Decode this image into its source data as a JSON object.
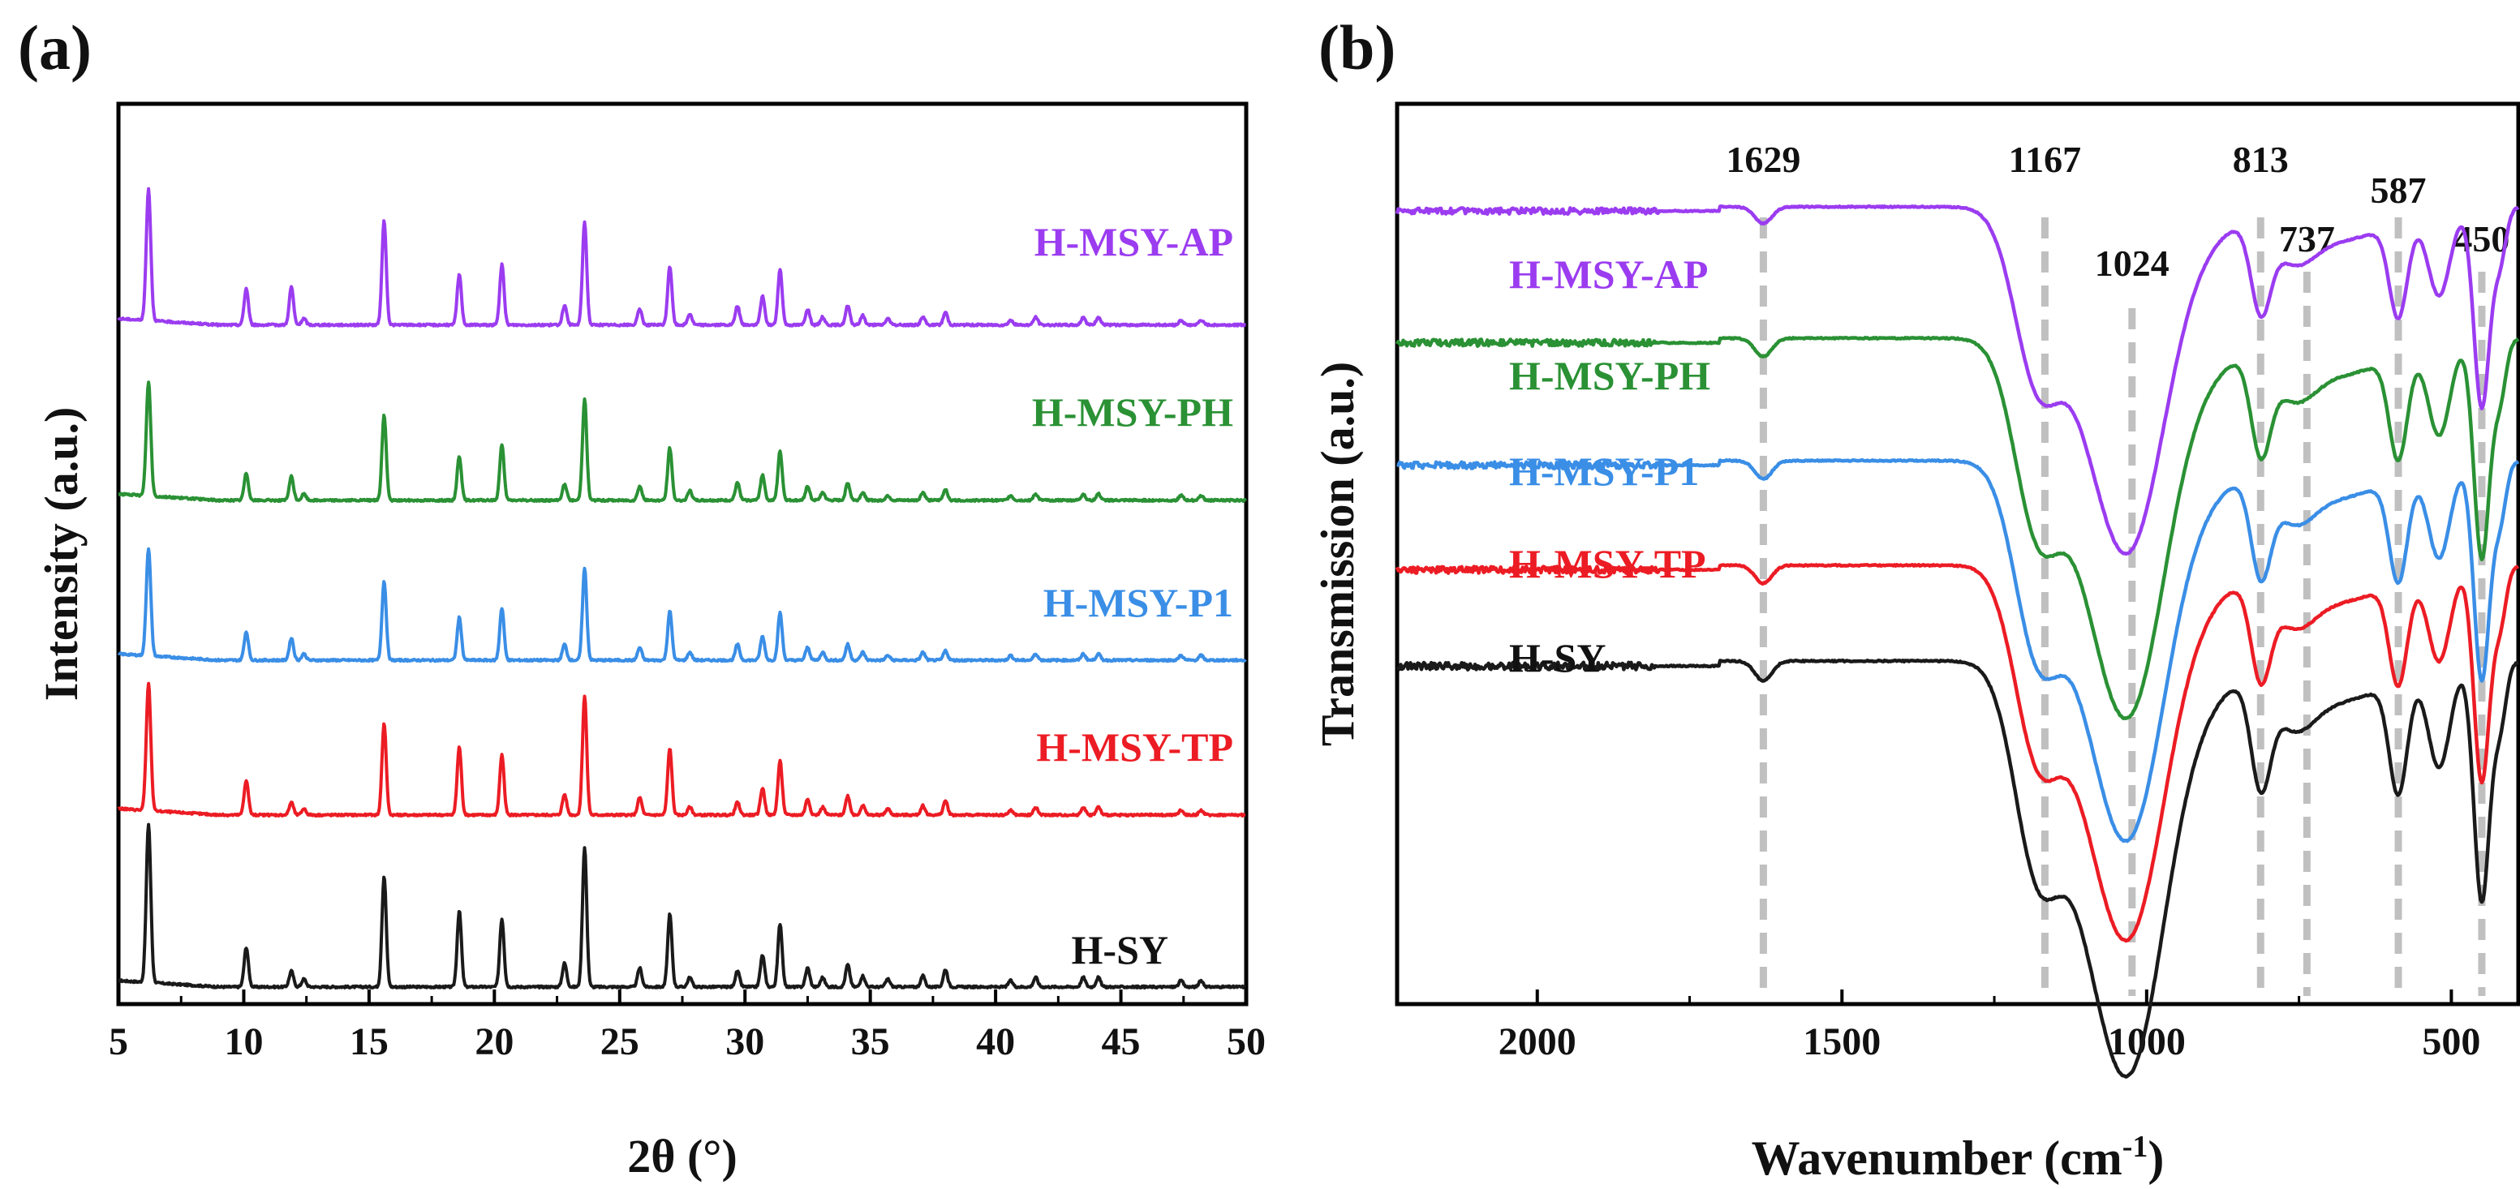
{
  "colors": {
    "black": "#1a1a1a",
    "red": "#ec1c24",
    "blue": "#3a8ee6",
    "green": "#2a9134",
    "purple": "#9b3cf0",
    "dashed": "#c0c0c0"
  },
  "chart_data": [
    {
      "panel": "(a)",
      "type": "line",
      "title": "",
      "xlabel": "2θ (°)",
      "ylabel": "Intensity (a.u.)",
      "xlim": [
        5,
        50
      ],
      "xticks": [
        "5",
        "10",
        "15",
        "20",
        "25",
        "30",
        "35",
        "40",
        "45",
        "50"
      ],
      "peaks_2theta": [
        6.2,
        10.1,
        11.9,
        12.4,
        15.6,
        18.6,
        20.3,
        22.8,
        23.6,
        25.8,
        27.0,
        27.8,
        29.7,
        30.7,
        31.4,
        32.5,
        33.1,
        34.1,
        34.7,
        35.7,
        37.1,
        38.0,
        40.6,
        41.6,
        43.5,
        44.1,
        47.4,
        48.2
      ],
      "series": [
        {
          "name": "H-SY",
          "color": "black",
          "offset": 0.0,
          "peak_heights": [
            1.0,
            0.25,
            0.1,
            0.05,
            0.7,
            0.48,
            0.43,
            0.15,
            0.88,
            0.12,
            0.46,
            0.06,
            0.1,
            0.2,
            0.4,
            0.12,
            0.06,
            0.14,
            0.07,
            0.05,
            0.07,
            0.11,
            0.04,
            0.06,
            0.06,
            0.06,
            0.04,
            0.04
          ]
        },
        {
          "name": "H-MSY-TP",
          "color": "red",
          "offset": 1.0,
          "peak_heights": [
            0.8,
            0.22,
            0.08,
            0.04,
            0.58,
            0.43,
            0.38,
            0.13,
            0.75,
            0.11,
            0.42,
            0.05,
            0.08,
            0.17,
            0.34,
            0.1,
            0.05,
            0.12,
            0.06,
            0.04,
            0.06,
            0.09,
            0.03,
            0.05,
            0.05,
            0.05,
            0.03,
            0.03
          ]
        },
        {
          "name": "H-MSY-P1",
          "color": "blue",
          "offset": 1.9,
          "peak_heights": [
            0.68,
            0.18,
            0.14,
            0.04,
            0.5,
            0.27,
            0.33,
            0.1,
            0.58,
            0.08,
            0.31,
            0.05,
            0.1,
            0.15,
            0.3,
            0.08,
            0.05,
            0.1,
            0.05,
            0.03,
            0.05,
            0.06,
            0.03,
            0.04,
            0.04,
            0.04,
            0.03,
            0.03
          ]
        },
        {
          "name": "H-MSY-PH",
          "color": "green",
          "offset": 2.83,
          "peak_heights": [
            0.72,
            0.17,
            0.15,
            0.04,
            0.54,
            0.28,
            0.35,
            0.1,
            0.64,
            0.09,
            0.33,
            0.06,
            0.11,
            0.16,
            0.31,
            0.09,
            0.05,
            0.11,
            0.05,
            0.03,
            0.05,
            0.07,
            0.03,
            0.04,
            0.04,
            0.04,
            0.03,
            0.03
          ]
        },
        {
          "name": "H-MSY-AP",
          "color": "purple",
          "offset": 3.85,
          "peak_heights": [
            0.83,
            0.23,
            0.24,
            0.04,
            0.66,
            0.32,
            0.38,
            0.12,
            0.65,
            0.1,
            0.37,
            0.07,
            0.12,
            0.18,
            0.35,
            0.1,
            0.05,
            0.12,
            0.06,
            0.04,
            0.05,
            0.08,
            0.03,
            0.05,
            0.05,
            0.05,
            0.03,
            0.03
          ]
        }
      ]
    },
    {
      "panel": "(b)",
      "type": "line",
      "title": "",
      "xlabel": "Wavenumber (cm",
      "xlabel_sup": "-1",
      "xlabel_tail": ")",
      "ylabel": "Transmission (a.u.)",
      "xlim": [
        2230,
        390
      ],
      "xticks": [
        "2000",
        "1500",
        "1000",
        "500"
      ],
      "xtick_values": [
        2000,
        1500,
        1000,
        500
      ],
      "reference_lines": [
        1629,
        1167,
        1024,
        813,
        737,
        587,
        450
      ],
      "reference_labels": [
        "1629",
        "1167",
        "1024",
        "813",
        "737",
        "587",
        "450"
      ],
      "series": [
        {
          "name": "H-SY",
          "color": "black",
          "offset": 0,
          "baseline": 0.0
        },
        {
          "name": "H-MSY-TP",
          "color": "red",
          "offset": 1,
          "baseline": 0.0
        },
        {
          "name": "H-MSY-P1",
          "color": "blue",
          "offset": 2,
          "baseline": 0.0
        },
        {
          "name": "H-MSY-PH",
          "color": "green",
          "offset": 3,
          "baseline": 0.0
        },
        {
          "name": "H-MSY-AP",
          "color": "purple",
          "offset": 4,
          "baseline": 0.0
        }
      ]
    }
  ]
}
